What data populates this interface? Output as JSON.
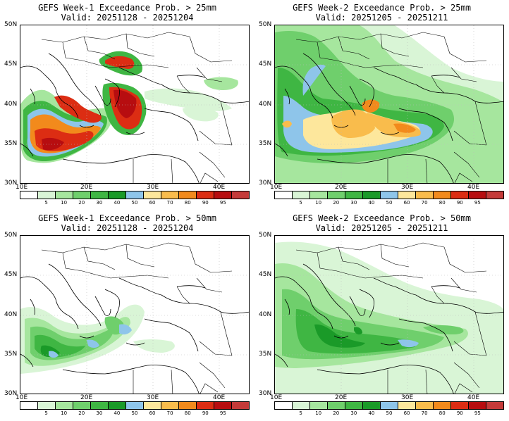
{
  "colorbar": {
    "colors": [
      "#ffffff",
      "#d9f5d6",
      "#a6e69e",
      "#6fcf6c",
      "#3fb643",
      "#1a9a28",
      "#8ec5ea",
      "#fde79c",
      "#f9bc4c",
      "#f28a1c",
      "#dc2d13",
      "#b70d10",
      "#c43a39"
    ],
    "labels": [
      "5",
      "10",
      "20",
      "30",
      "40",
      "50",
      "60",
      "70",
      "80",
      "90",
      "95"
    ]
  },
  "axes": {
    "lat_labels": [
      "50N",
      "45N",
      "40N",
      "35N",
      "30N"
    ],
    "lon_labels": [
      "10E",
      "20E",
      "30E",
      "40E"
    ]
  },
  "panels": [
    {
      "id": "w1-25",
      "title": "GEFS Week-1 Exceedance Prob. > 25mm",
      "valid": "Valid: 20251128 - 20251204",
      "map": {
        "layers": [
          {
            "level": 1,
            "blobs": [
              [
                -60,
                -20,
                180,
                300,
                "e"
              ],
              [
                -20,
                200,
                150,
                -70,
                "e"
              ],
              [
                -10,
                -20,
                90,
                -20,
                "e"
              ],
              [
                50,
                -30,
                130,
                100,
                "e"
              ],
              [
                -60,
                100,
                40,
                -40,
                "e"
              ],
              [
                40,
                100,
                80,
                -80,
                "e"
              ],
              [
                190,
                80,
                -60,
                -80,
                "e"
              ]
            ]
          },
          {
            "level": 3,
            "blobs": [
              [
                -250,
                60,
                60,
                120,
                "e"
              ],
              [
                200,
                110,
                60,
                -120,
                "e"
              ],
              [
                100,
                40,
                90,
                120,
                "e"
              ],
              [
                160,
                30,
                -40,
                -120,
                "e"
              ],
              [
                50,
                100,
                -100,
                150,
                "e"
              ]
            ]
          },
          {
            "level": 5,
            "blobs": [
              [
                20,
                220,
                -70,
                80,
                "e"
              ],
              [
                190,
                130,
                -40,
                90,
                "e"
              ],
              [
                -50,
                50,
                -20,
                -60,
                "e"
              ]
            ]
          },
          {
            "level": 6,
            "blobs": [
              [
                100,
                180,
                60,
                -80,
                "e"
              ],
              [
                -40,
                80,
                -90,
                50,
                "e"
              ]
            ]
          },
          {
            "level": 7,
            "blobs": [
              [
                -240,
                -60,
                130,
                -140,
                "e"
              ],
              [
                -80,
                40,
                -90,
                100,
                "e"
              ]
            ]
          },
          {
            "level": 8,
            "blobs": [
              [
                20,
                150,
                -170,
                80,
                "e"
              ],
              [
                -100,
                100,
                160,
                30,
                "e"
              ]
            ]
          },
          {
            "level": 9,
            "blobs": [
              [
                -230,
                50,
                -80,
                -30,
                "e"
              ]
            ]
          },
          {
            "level": 10,
            "blobs": [
              [
                -210,
                -110,
                90,
                90,
                "e"
              ],
              [
                -130,
                140,
                160,
                -70,
                "e"
              ]
            ]
          }
        ]
      }
    },
    {
      "id": "w2-25",
      "title": "GEFS Week-2 Exceedance Prob. > 25mm",
      "valid": "Valid: 20251205 - 20251211",
      "map": {
        "layers": [
          {
            "level": 1,
            "blobs": [
              [
                -60,
                -20,
                180,
                300,
                "e"
              ],
              [
                -20,
                200,
                150,
                -70,
                "e"
              ],
              [
                -10,
                -20,
                90,
                -20,
                "e"
              ],
              [
                50,
                -30,
                130,
                100,
                "e"
              ],
              [
                -60,
                100,
                40,
                -40,
                "e"
              ],
              [
                40,
                100,
                80,
                -80,
                "e"
              ],
              [
                190,
                80,
                -60,
                -80,
                "e"
              ],
              [
                -80,
                -60,
                40,
                170,
                "e"
              ]
            ]
          },
          {
            "level": 2,
            "blobs": [
              [
                -250,
                60,
                60,
                120,
                "e"
              ],
              [
                200,
                110,
                60,
                -120,
                "e"
              ],
              [
                100,
                40,
                90,
                120,
                "e"
              ],
              [
                160,
                30,
                -40,
                -120,
                "e"
              ],
              [
                50,
                100,
                -100,
                150,
                "e"
              ],
              [
                -140,
                80,
                80,
                -70,
                "e"
              ]
            ]
          },
          {
            "level": 3,
            "blobs": [
              [
                20,
                220,
                -70,
                80,
                "e"
              ],
              [
                190,
                130,
                -40,
                90,
                "e"
              ],
              [
                -50,
                50,
                -20,
                -60,
                "e"
              ],
              [
                -80,
                -120,
                160,
                90,
                "e"
              ]
            ]
          },
          {
            "level": 4,
            "blobs": [
              [
                100,
                180,
                60,
                -80,
                "e"
              ],
              [
                -40,
                80,
                -90,
                50,
                "e"
              ],
              [
                -20,
                170,
                40,
                -90,
                "e"
              ]
            ]
          },
          {
            "level": 6,
            "blobs": [
              [
                -240,
                -60,
                130,
                -140,
                "e"
              ],
              [
                -80,
                40,
                -90,
                100,
                "e"
              ],
              [
                -110,
                20,
                80,
                -60,
                "e"
              ]
            ]
          },
          {
            "level": 7,
            "blobs": [
              [
                20,
                150,
                -170,
                80,
                "e"
              ],
              [
                -100,
                100,
                160,
                30,
                "e"
              ]
            ]
          },
          {
            "level": 8,
            "blobs": [
              [
                -230,
                50,
                -80,
                -30,
                "e"
              ],
              [
                100,
                70,
                120,
                40,
                "e"
              ]
            ]
          }
        ]
      }
    },
    {
      "id": "w1-50",
      "title": "GEFS Week-1 Exceedance Prob. > 50mm",
      "valid": "Valid: 20251128 - 20251204",
      "map": {
        "layers": [
          {
            "level": 1,
            "blobs": [
              [
                -60,
                -20,
                180,
                300,
                "e"
              ],
              [
                -20,
                200,
                150,
                -70,
                "e"
              ],
              [
                -10,
                -20,
                90,
                -20,
                "e"
              ]
            ]
          },
          {
            "level": 2,
            "blobs": [
              [
                -250,
                60,
                60,
                120,
                "e"
              ],
              [
                200,
                110,
                60,
                -120,
                "e"
              ],
              [
                100,
                40,
                90,
                120,
                "e"
              ]
            ]
          },
          {
            "level": 3,
            "blobs": [
              [
                20,
                220,
                -70,
                80,
                "e"
              ],
              [
                190,
                130,
                -40,
                90,
                "e"
              ]
            ]
          },
          {
            "level": 4,
            "blobs": [
              [
                100,
                180,
                60,
                -80,
                "e"
              ],
              [
                -40,
                80,
                -90,
                50,
                "e"
              ]
            ]
          },
          {
            "level": 5,
            "blobs": [
              [
                -240,
                -60,
                130,
                -140,
                "e"
              ]
            ]
          },
          {
            "level": 6,
            "blobs": [
              [
                20,
                150,
                -170,
                80,
                "e"
              ],
              [
                -100,
                100,
                160,
                30,
                "e"
              ]
            ]
          }
        ]
      }
    },
    {
      "id": "w2-50",
      "title": "GEFS Week-2 Exceedance Prob. > 50mm",
      "valid": "Valid: 20251205 - 20251211",
      "map": {
        "layers": [
          {
            "level": 1,
            "blobs": [
              [
                -60,
                -20,
                180,
                300,
                "e"
              ],
              [
                -20,
                200,
                150,
                -70,
                "e"
              ],
              [
                -10,
                -20,
                90,
                -20,
                "e"
              ],
              [
                50,
                -30,
                130,
                100,
                "e"
              ],
              [
                -60,
                100,
                40,
                -40,
                "e"
              ]
            ]
          },
          {
            "level": 2,
            "blobs": [
              [
                -250,
                60,
                60,
                120,
                "e"
              ],
              [
                200,
                110,
                60,
                -120,
                "e"
              ],
              [
                100,
                40,
                90,
                120,
                "e"
              ],
              [
                160,
                30,
                -40,
                -120,
                "e"
              ]
            ]
          },
          {
            "level": 3,
            "blobs": [
              [
                20,
                220,
                -70,
                80,
                "e"
              ],
              [
                190,
                130,
                -40,
                90,
                "e"
              ],
              [
                -50,
                50,
                -20,
                -60,
                "e"
              ]
            ]
          },
          {
            "level": 4,
            "blobs": [
              [
                100,
                180,
                60,
                -80,
                "e"
              ],
              [
                -40,
                80,
                -90,
                50,
                "e"
              ]
            ]
          },
          {
            "level": 5,
            "blobs": [
              [
                -240,
                -60,
                130,
                -140,
                "e"
              ],
              [
                -80,
                40,
                -90,
                100,
                "e"
              ]
            ]
          },
          {
            "level": 6,
            "blobs": [
              [
                20,
                150,
                -170,
                80,
                "e"
              ]
            ]
          }
        ]
      }
    }
  ]
}
